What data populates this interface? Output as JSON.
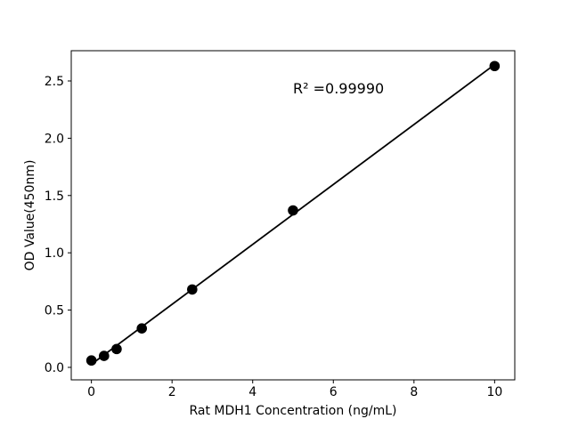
{
  "chart_data": {
    "type": "scatter",
    "title": "",
    "xlabel": "Rat MDH1 Concentration (ng/mL)",
    "ylabel": "OD Value(450nm)",
    "annotation": "R² =0.99990",
    "x_ticks": [
      0,
      2,
      4,
      6,
      8,
      10
    ],
    "x_tick_labels": [
      "0",
      "2",
      "4",
      "6",
      "8",
      "10"
    ],
    "y_ticks": [
      0.0,
      0.5,
      1.0,
      1.5,
      2.0,
      2.5
    ],
    "y_tick_labels": [
      "0.0",
      "0.5",
      "1.0",
      "1.5",
      "2.0",
      "2.5"
    ],
    "xlim": [
      -0.5,
      10.5
    ],
    "ylim": [
      -0.109,
      2.764
    ],
    "grid": false,
    "legend": null,
    "series": [
      {
        "name": "standard-points",
        "type": "scatter",
        "marker": "circle",
        "color": "#000000",
        "points": [
          {
            "x": 0,
            "y": 0.06
          },
          {
            "x": 0.313,
            "y": 0.1
          },
          {
            "x": 0.625,
            "y": 0.16
          },
          {
            "x": 1.25,
            "y": 0.34
          },
          {
            "x": 2.5,
            "y": 0.68
          },
          {
            "x": 5,
            "y": 1.37
          },
          {
            "x": 10,
            "y": 2.63
          }
        ]
      },
      {
        "name": "linear-fit",
        "type": "line",
        "color": "#000000",
        "points": [
          {
            "x": 0,
            "y": 0.027
          },
          {
            "x": 10,
            "y": 2.643
          }
        ]
      }
    ],
    "colors": {
      "foreground": "#000000",
      "background": "#ffffff"
    }
  }
}
